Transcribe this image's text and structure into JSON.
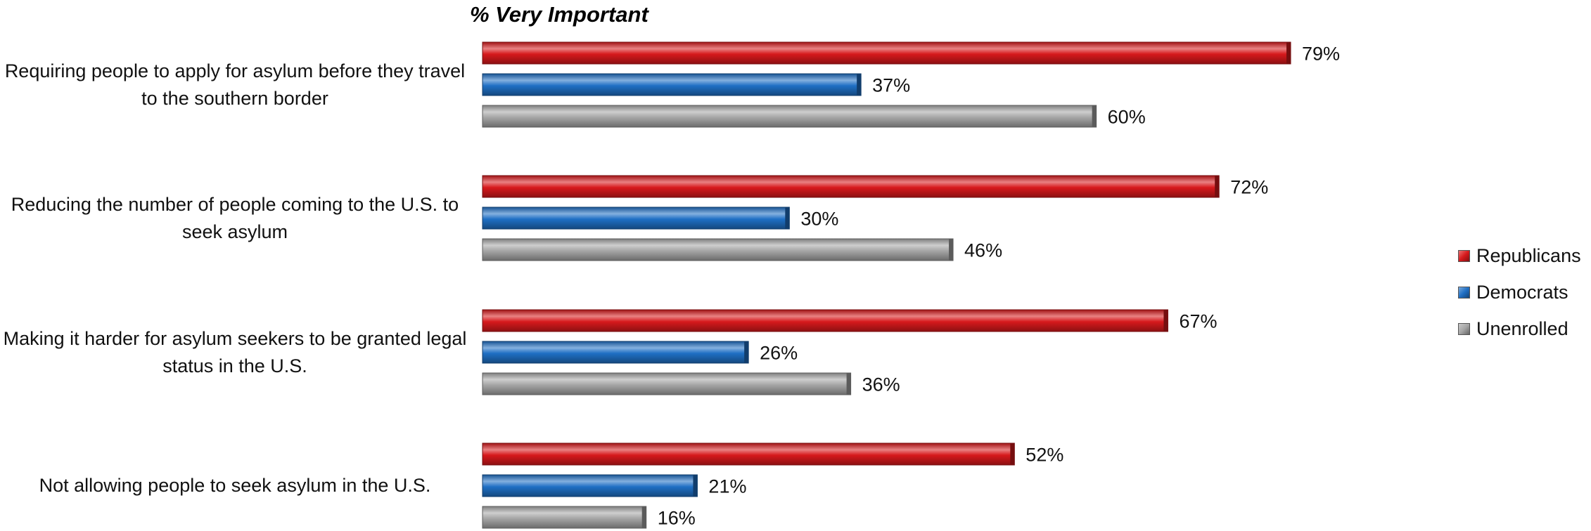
{
  "chart_data": {
    "type": "bar",
    "orientation": "horizontal",
    "title": "% Very Important",
    "categories": [
      "Requiring people to apply for asylum before they travel to the southern border",
      "Reducing the number of people coming to the U.S. to seek asylum",
      "Making it harder for asylum seekers to be granted legal status in the U.S.",
      "Not allowing people to seek asylum in the U.S."
    ],
    "series": [
      {
        "name": "Republicans",
        "color": "#d7191c",
        "values": [
          79,
          72,
          67,
          52
        ]
      },
      {
        "name": "Democrats",
        "color": "#1f6fc4",
        "values": [
          37,
          30,
          26,
          21
        ]
      },
      {
        "name": "Unenrolled",
        "color": "#a6a6a6",
        "values": [
          60,
          46,
          36,
          16
        ]
      }
    ],
    "value_suffix": "%",
    "xlim": [
      0,
      100
    ],
    "grid": false,
    "legend_position": "right"
  }
}
